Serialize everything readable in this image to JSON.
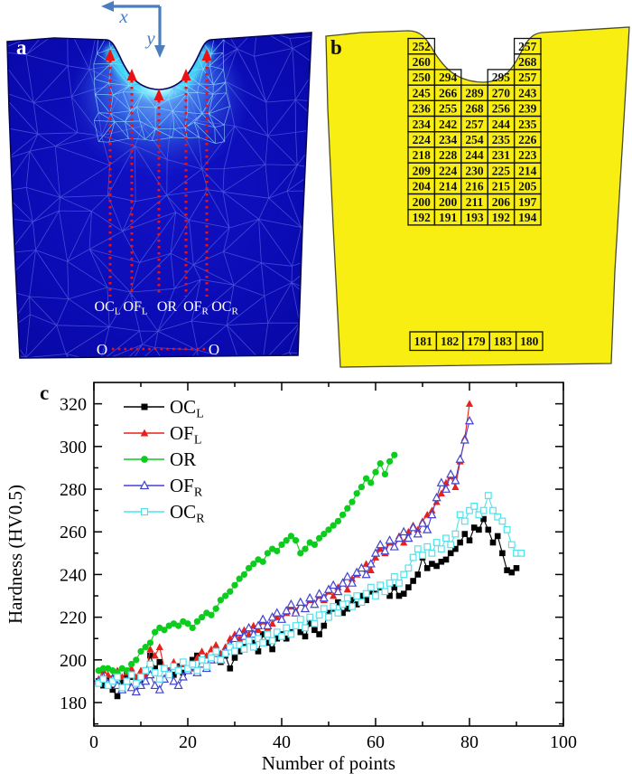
{
  "figure_labels": {
    "panel_a": "a",
    "panel_b": "b",
    "panel_c": "c"
  },
  "panel_a": {
    "axis_x": "x",
    "axis_y": "y",
    "origin_left": "O",
    "origin_right": "O",
    "line_labels": [
      {
        "main": "OC",
        "sub": "L"
      },
      {
        "main": "OF",
        "sub": "L"
      },
      {
        "main": "OR",
        "sub": ""
      },
      {
        "main": "OF",
        "sub": "R"
      },
      {
        "main": "OC",
        "sub": "R"
      }
    ],
    "colors": {
      "body_blue": "#0b0bb4",
      "glow_cyan": "#45e8f8",
      "mesh_line": "#7f92e8",
      "marker_red": "#ee1111",
      "axis_arrow_blue": "#4a7ebf"
    }
  },
  "panel_b": {
    "colors": {
      "body_yellow": "#f8ee12",
      "cell_border": "#111111",
      "value_text": "#111111"
    },
    "hardness_grid": [
      [
        252,
        null,
        null,
        null,
        257
      ],
      [
        260,
        null,
        null,
        null,
        268
      ],
      [
        250,
        294,
        null,
        295,
        257
      ],
      [
        245,
        266,
        289,
        270,
        243
      ],
      [
        236,
        255,
        268,
        256,
        239
      ],
      [
        234,
        242,
        257,
        244,
        235
      ],
      [
        224,
        234,
        254,
        235,
        226
      ],
      [
        218,
        228,
        244,
        231,
        223
      ],
      [
        209,
        224,
        230,
        225,
        214
      ],
      [
        204,
        214,
        216,
        215,
        205
      ],
      [
        200,
        200,
        211,
        206,
        197
      ],
      [
        192,
        191,
        193,
        192,
        194
      ]
    ],
    "bottom_row": [
      181,
      182,
      179,
      183,
      180
    ]
  },
  "chart_data": {
    "type": "line",
    "title": "",
    "xlabel": "Number of points",
    "ylabel": "Hardness (HV0.5)",
    "xlim": [
      0,
      100
    ],
    "ylim": [
      169,
      330
    ],
    "x_major_ticks": [
      0,
      20,
      40,
      60,
      80,
      100
    ],
    "x_minor_step": 10,
    "y_major_ticks": [
      180,
      200,
      220,
      240,
      260,
      280,
      300,
      320
    ],
    "y_minor_step": 10,
    "grid": false,
    "legend_position": "top-left",
    "series": [
      {
        "name": "OCL",
        "label_main": "OC",
        "label_sub": "L",
        "color": "#000000",
        "marker": "square-filled",
        "x_start": 1,
        "values": [
          190,
          188,
          191,
          186,
          183,
          190,
          193,
          192,
          190,
          188,
          195,
          202,
          196,
          199,
          196,
          195,
          193,
          197,
          194,
          196,
          200,
          202,
          198,
          196,
          201,
          203,
          199,
          202,
          196,
          201,
          204,
          206,
          210,
          208,
          204,
          212,
          208,
          205,
          210,
          212,
          210,
          213,
          216,
          213,
          211,
          217,
          214,
          212,
          216,
          222,
          224,
          227,
          222,
          224,
          228,
          226,
          230,
          228,
          232,
          231,
          234,
          232,
          230,
          234,
          230,
          231,
          234,
          237,
          240,
          248,
          243,
          245,
          244,
          246,
          247,
          250,
          252,
          255,
          259,
          256,
          262,
          261,
          266,
          261,
          255,
          258,
          250,
          242,
          241,
          243
        ]
      },
      {
        "name": "OFL",
        "label_main": "OF",
        "label_sub": "L",
        "color": "#e8211c",
        "marker": "triangle-filled",
        "x_start": 1,
        "values": [
          191,
          195,
          193,
          192,
          195,
          192,
          194,
          196,
          192,
          195,
          193,
          205,
          202,
          206,
          196,
          195,
          199,
          196,
          198,
          195,
          196,
          201,
          204,
          202,
          205,
          207,
          203,
          206,
          210,
          212,
          210,
          214,
          212,
          216,
          214,
          218,
          215,
          217,
          220,
          219,
          222,
          225,
          223,
          227,
          224,
          228,
          226,
          230,
          228,
          232,
          230,
          234,
          236,
          233,
          238,
          240,
          243,
          245,
          242,
          248,
          252,
          250,
          255,
          253,
          258,
          255,
          260,
          263,
          261,
          265,
          268,
          270,
          274,
          278,
          283,
          286,
          281,
          293,
          304,
          320
        ]
      },
      {
        "name": "OR",
        "label_main": "OR",
        "label_sub": "",
        "color": "#0ccc1e",
        "marker": "circle-filled",
        "x_start": 1,
        "values": [
          195,
          196,
          196,
          195,
          194,
          196,
          195,
          198,
          200,
          204,
          206,
          208,
          213,
          215,
          214,
          216,
          217,
          216,
          218,
          217,
          215,
          218,
          220,
          222,
          221,
          224,
          228,
          230,
          232,
          235,
          238,
          240,
          243,
          245,
          247,
          246,
          250,
          252,
          251,
          254,
          256,
          258,
          256,
          250,
          252,
          255,
          254,
          257,
          259,
          261,
          263,
          265,
          268,
          271,
          274,
          278,
          281,
          285,
          283,
          288,
          292,
          287,
          293,
          296
        ]
      },
      {
        "name": "OFR",
        "label_main": "OF",
        "label_sub": "R",
        "color": "#4343cf",
        "marker": "triangle-open",
        "x_start": 1,
        "values": [
          190,
          192,
          189,
          191,
          188,
          186,
          190,
          187,
          185,
          188,
          190,
          193,
          188,
          186,
          191,
          194,
          190,
          188,
          192,
          195,
          197,
          194,
          198,
          196,
          200,
          203,
          200,
          204,
          207,
          210,
          213,
          211,
          215,
          212,
          216,
          219,
          216,
          220,
          222,
          219,
          223,
          226,
          222,
          227,
          224,
          229,
          226,
          231,
          229,
          233,
          235,
          232,
          236,
          239,
          236,
          241,
          243,
          240,
          245,
          250,
          254,
          251,
          256,
          253,
          257,
          260,
          257,
          262,
          259,
          264,
          261,
          268,
          276,
          283,
          280,
          287,
          284,
          294,
          303,
          312
        ]
      },
      {
        "name": "OCR",
        "label_main": "OC",
        "label_sub": "R",
        "color": "#4fe3ee",
        "marker": "square-open",
        "x_start": 1,
        "values": [
          189,
          191,
          188,
          190,
          192,
          187,
          190,
          193,
          189,
          192,
          195,
          198,
          194,
          191,
          196,
          193,
          197,
          195,
          199,
          196,
          198,
          195,
          200,
          197,
          201,
          204,
          200,
          203,
          206,
          204,
          207,
          205,
          209,
          206,
          210,
          208,
          212,
          209,
          213,
          211,
          215,
          212,
          216,
          219,
          215,
          220,
          217,
          221,
          224,
          220,
          225,
          222,
          226,
          229,
          225,
          230,
          227,
          231,
          234,
          230,
          235,
          232,
          236,
          239,
          236,
          240,
          243,
          248,
          252,
          249,
          253,
          250,
          255,
          252,
          257,
          254,
          259,
          268,
          265,
          270,
          272,
          268,
          270,
          277,
          270,
          267,
          265,
          261,
          254,
          250,
          250
        ]
      }
    ]
  }
}
